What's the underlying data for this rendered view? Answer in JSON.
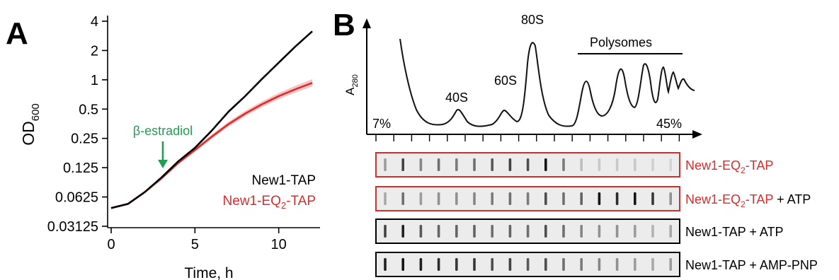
{
  "panel_a": {
    "letter": "A",
    "annotation": "β-estradiol",
    "chart_data": {
      "type": "line",
      "ylabel": "OD",
      "ylabel_sub": "600",
      "xlabel": "Time, h",
      "yscale": "log2",
      "ylim": [
        0.03125,
        4
      ],
      "xlim": [
        0,
        12
      ],
      "x_ticks": [
        0,
        5,
        10
      ],
      "y_ticks": [
        "4",
        "2",
        "1",
        "0.5",
        "0.25",
        "0.125",
        "0.0625",
        "0.03125"
      ],
      "y_tick_values": [
        4,
        2,
        1,
        0.5,
        0.25,
        0.125,
        0.0625,
        0.03125
      ],
      "annotation_x": 3,
      "series": [
        {
          "name": "New1-TAP",
          "color": "#000000",
          "x": [
            0,
            1,
            2,
            3,
            4,
            5,
            6,
            7,
            8,
            9,
            10,
            11,
            12
          ],
          "y": [
            0.048,
            0.053,
            0.07,
            0.099,
            0.145,
            0.2,
            0.3,
            0.47,
            0.68,
            1.02,
            1.5,
            2.2,
            3.15
          ]
        },
        {
          "name": "New1-EQ2-TAP",
          "name_main": "New1-EQ",
          "name_sub": "2",
          "name_tail": "-TAP",
          "color": "#e02b2b",
          "x": [
            0,
            1,
            2,
            3,
            4,
            5,
            6,
            7,
            8,
            9,
            10,
            11,
            12
          ],
          "y": [
            0.048,
            0.053,
            0.07,
            0.097,
            0.14,
            0.19,
            0.26,
            0.35,
            0.45,
            0.56,
            0.68,
            0.8,
            0.93
          ]
        }
      ]
    }
  },
  "panel_b": {
    "letter": "B",
    "ylabel": "A",
    "ylabel_sub": "280",
    "peaks": [
      "40S",
      "60S",
      "80S"
    ],
    "polysomes_label": "Polysomes",
    "gradient_start": "7%",
    "gradient_end": "45%",
    "lanes": 17,
    "blots": [
      {
        "label_main": "New1-EQ",
        "label_sub": "2",
        "label_tail": "-TAP",
        "label_extra": "",
        "label_color": "#e02b2b",
        "border_color": "#e02b2b",
        "intensity": [
          0.35,
          0.75,
          0.45,
          0.55,
          0.5,
          0.55,
          0.65,
          0.75,
          0.7,
          0.95,
          0.5,
          0.2,
          0.15,
          0.15,
          0.15,
          0.12,
          0.1
        ]
      },
      {
        "label_main": "New1-EQ",
        "label_sub": "2",
        "label_tail": "-TAP",
        "label_extra": " + ATP",
        "label_color": "#e02b2b",
        "border_color": "#e02b2b",
        "intensity": [
          0.3,
          0.55,
          0.35,
          0.4,
          0.4,
          0.45,
          0.5,
          0.55,
          0.5,
          0.7,
          0.55,
          0.6,
          0.95,
          0.85,
          0.95,
          0.8,
          0.4
        ]
      },
      {
        "label_main": "New1-TAP + ATP",
        "label_sub": "",
        "label_tail": "",
        "label_extra": "",
        "label_color": "#000000",
        "border_color": "#000000",
        "intensity": [
          0.75,
          0.9,
          0.65,
          0.6,
          0.6,
          0.6,
          0.55,
          0.6,
          0.55,
          0.7,
          0.55,
          0.45,
          0.4,
          0.4,
          0.35,
          0.25,
          0.3
        ]
      },
      {
        "label_main": "New1-TAP + AMP-PNP",
        "label_sub": "",
        "label_tail": "",
        "label_extra": "",
        "label_color": "#000000",
        "border_color": "#000000",
        "intensity": [
          0.9,
          0.95,
          0.9,
          0.85,
          0.8,
          0.8,
          0.7,
          0.75,
          0.65,
          0.7,
          0.55,
          0.5,
          0.45,
          0.4,
          0.35,
          0.3,
          0.35
        ]
      }
    ]
  }
}
